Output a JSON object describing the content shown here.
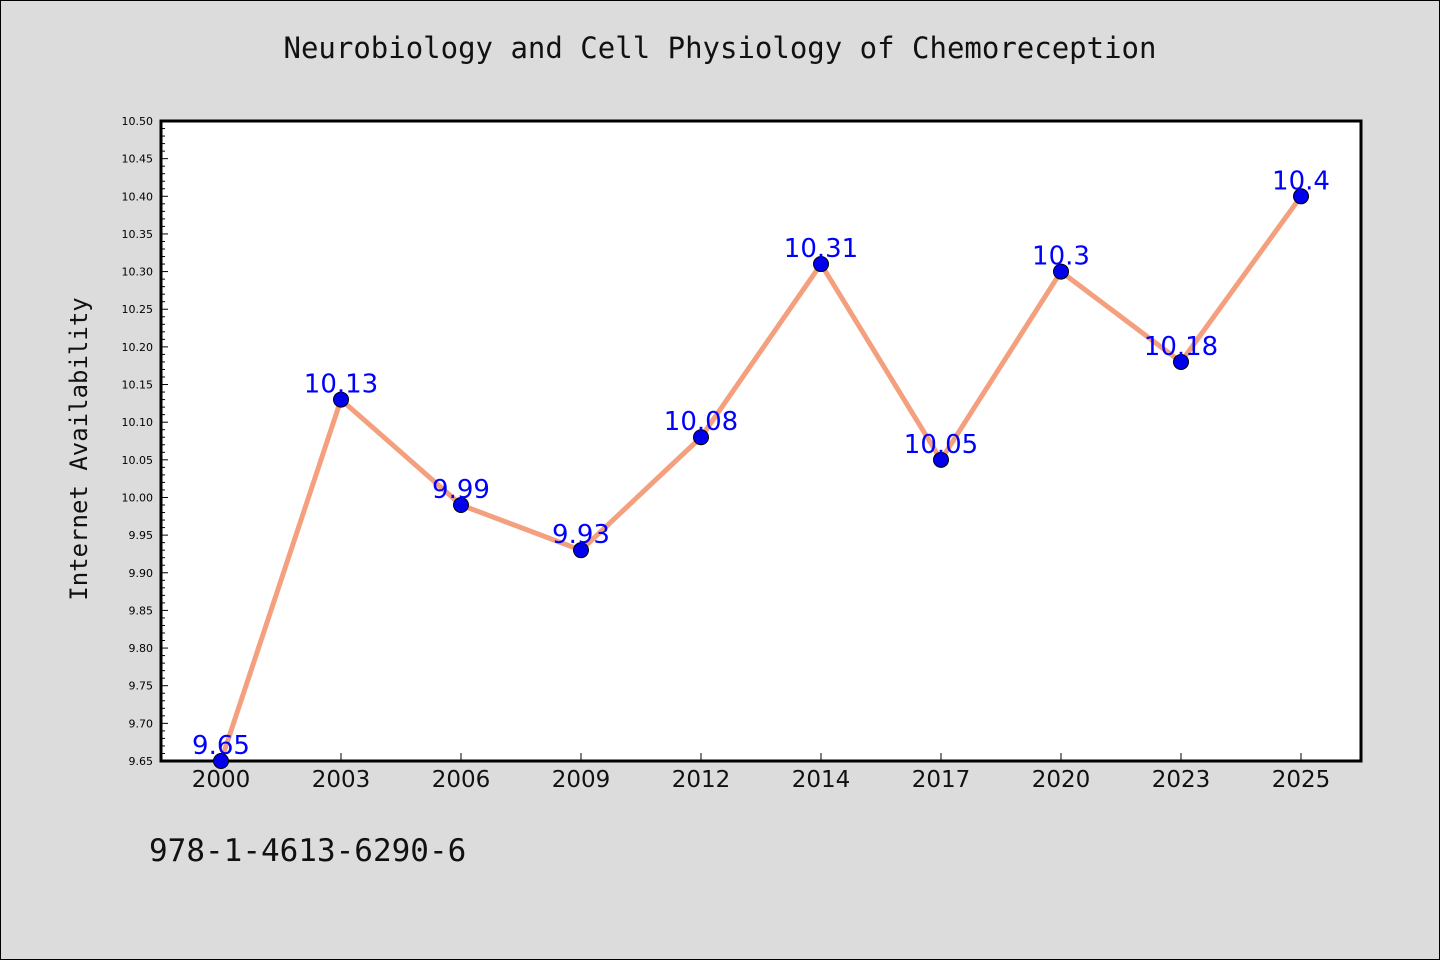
{
  "title": "Neurobiology and Cell Physiology of Chemoreception",
  "footer_text": "978-1-4613-6290-6",
  "chart_data": {
    "type": "line",
    "title": "Neurobiology and Cell Physiology of Chemoreception",
    "xlabel": "",
    "ylabel": "Internet Availability",
    "categories": [
      "2000",
      "2003",
      "2006",
      "2009",
      "2012",
      "2014",
      "2017",
      "2020",
      "2023",
      "2025"
    ],
    "series": [
      {
        "values": [
          9.65,
          10.13,
          9.99,
          9.93,
          10.08,
          10.31,
          10.05,
          10.3,
          10.18,
          10.4
        ],
        "data_labels": [
          "9.65",
          "10.13",
          "9.99",
          "9.93",
          "10.08",
          "10.31",
          "10.05",
          "10.3",
          "10.18",
          "10.4"
        ],
        "line_color": "#f4a07e",
        "marker_color": "#0000ee",
        "label_color": "#0000ff"
      }
    ],
    "ylim": [
      9.65,
      10.5
    ],
    "yticks": [
      "9.65",
      "9.70",
      "9.75",
      "9.80",
      "9.85",
      "9.90",
      "9.95",
      "10.00",
      "10.05",
      "10.10",
      "10.15",
      "10.20",
      "10.25",
      "10.30",
      "10.35",
      "10.40",
      "10.45",
      "10.50"
    ],
    "grid": false,
    "legend": false,
    "colors": {
      "background": "#dcdcdc",
      "plot_background": "#ffffff",
      "axes": "#000000"
    }
  }
}
